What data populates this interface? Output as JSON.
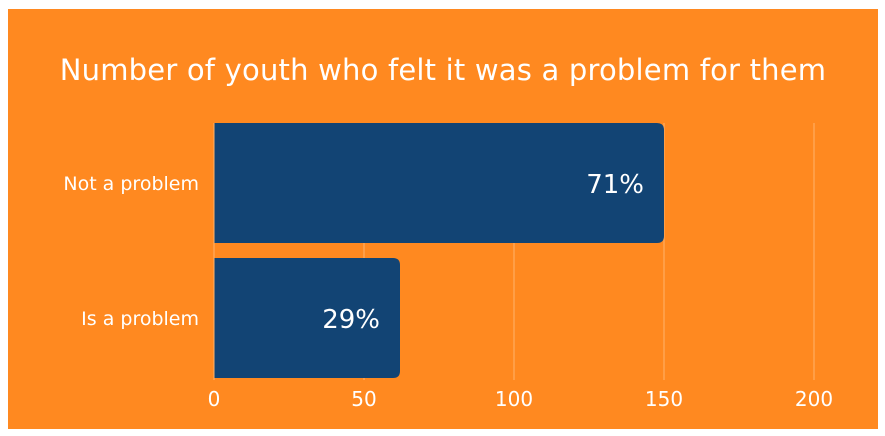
{
  "chart_data": {
    "type": "bar",
    "orientation": "horizontal",
    "title": "Number of youth who felt it was a problem for them",
    "categories": [
      "Not a problem",
      "Is a problem"
    ],
    "values": [
      150,
      62
    ],
    "data_labels": [
      "71%",
      "29%"
    ],
    "xlim": [
      0,
      200
    ],
    "x_ticks": [
      "0",
      "50",
      "100",
      "150",
      "200"
    ],
    "grid": true,
    "legend": "none",
    "colors": {
      "background": "#ff8920",
      "bar": "#124474",
      "text": "#ffffff"
    }
  }
}
